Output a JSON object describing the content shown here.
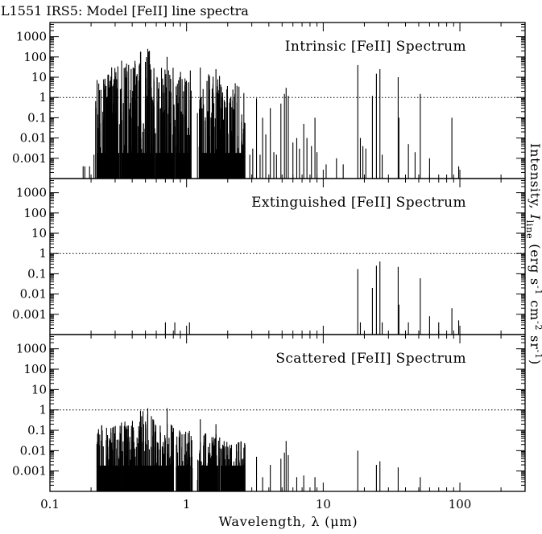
{
  "chart_data": {
    "type": "bar",
    "title": "L1551 IRS5: Model [FeII] line spectra",
    "xlabel": "Wavelength, λ (μm)",
    "ylabel": "Intensity, I_line (erg s⁻¹ cm⁻² sr⁻¹)",
    "ylabel_parts": {
      "prefix": "Intensity, ",
      "symbol": "I",
      "subscript": "line",
      "units_a": " (erg s",
      "exp1": "-1",
      "units_b": " cm",
      "exp2": "-2",
      "units_c": " sr",
      "exp3": "-1",
      "units_d": ")"
    },
    "x_scale": "log",
    "y_scale": "log",
    "xlim": [
      0.1,
      300
    ],
    "ylim": [
      0.0001,
      5000
    ],
    "x_tick_labels": [
      {
        "value": 0.1,
        "label": "0.1"
      },
      {
        "value": 1,
        "label": "1"
      },
      {
        "value": 10,
        "label": "10"
      },
      {
        "value": 100,
        "label": "100"
      }
    ],
    "y_tick_labels": [
      {
        "value": 1000,
        "label": "1000"
      },
      {
        "value": 100,
        "label": "100"
      },
      {
        "value": 10,
        "label": "10"
      },
      {
        "value": 1,
        "label": "1"
      },
      {
        "value": 0.1,
        "label": "0.1"
      },
      {
        "value": 0.01,
        "label": "0.01"
      },
      {
        "value": 0.001,
        "label": "0.001"
      }
    ],
    "reference_line": {
      "y": 1,
      "style": "dotted"
    },
    "grid": false,
    "legend": "none",
    "panels": [
      {
        "name": "Intrinsic [FeII] Spectrum",
        "label": "Intrinsic [FeII] Spectrum",
        "dense_clusters": [
          {
            "xmin": 0.215,
            "xmax": 0.3,
            "peak": 12
          },
          {
            "xmin": 0.26,
            "xmax": 0.33,
            "peak": 35
          },
          {
            "xmin": 0.33,
            "xmax": 0.46,
            "peak": 70
          },
          {
            "xmin": 0.45,
            "xmax": 0.58,
            "peak": 220
          },
          {
            "xmin": 0.58,
            "xmax": 0.82,
            "peak": 40
          },
          {
            "xmin": 0.82,
            "xmax": 1.1,
            "peak": 22
          },
          {
            "xmin": 1.2,
            "xmax": 1.75,
            "peak": 15
          },
          {
            "xmin": 1.75,
            "xmax": 2.7,
            "peak": 8
          }
        ],
        "lines": [
          {
            "x": 0.175,
            "y": 0.0004
          },
          {
            "x": 0.18,
            "y": 0.0004
          },
          {
            "x": 0.195,
            "y": 0.0004
          },
          {
            "x": 0.21,
            "y": 0.0015
          },
          {
            "x": 0.46,
            "y": 180
          },
          {
            "x": 0.52,
            "y": 250
          },
          {
            "x": 0.535,
            "y": 200
          },
          {
            "x": 0.72,
            "y": 100
          },
          {
            "x": 1.26,
            "y": 30
          },
          {
            "x": 1.64,
            "y": 25
          },
          {
            "x": 2.9,
            "y": 0.0015
          },
          {
            "x": 3.05,
            "y": 0.003
          },
          {
            "x": 3.25,
            "y": 0.9
          },
          {
            "x": 3.45,
            "y": 0.0015
          },
          {
            "x": 3.6,
            "y": 0.1
          },
          {
            "x": 3.8,
            "y": 0.015
          },
          {
            "x": 4.1,
            "y": 0.3
          },
          {
            "x": 4.35,
            "y": 0.002
          },
          {
            "x": 4.55,
            "y": 0.0015
          },
          {
            "x": 4.9,
            "y": 0.5
          },
          {
            "x": 5.2,
            "y": 1.5
          },
          {
            "x": 5.35,
            "y": 3.0
          },
          {
            "x": 5.55,
            "y": 1.2
          },
          {
            "x": 6.0,
            "y": 0.006
          },
          {
            "x": 6.4,
            "y": 0.01
          },
          {
            "x": 6.7,
            "y": 0.003
          },
          {
            "x": 7.2,
            "y": 0.05
          },
          {
            "x": 7.6,
            "y": 0.01
          },
          {
            "x": 8.2,
            "y": 0.004
          },
          {
            "x": 8.7,
            "y": 0.1
          },
          {
            "x": 9.0,
            "y": 0.002
          },
          {
            "x": 10.5,
            "y": 0.0005
          },
          {
            "x": 12.5,
            "y": 0.001
          },
          {
            "x": 14.0,
            "y": 0.0005
          },
          {
            "x": 17.9,
            "y": 40
          },
          {
            "x": 18.7,
            "y": 0.01
          },
          {
            "x": 19.5,
            "y": 0.004
          },
          {
            "x": 20.5,
            "y": 0.003
          },
          {
            "x": 22.9,
            "y": 1.2
          },
          {
            "x": 24.5,
            "y": 15
          },
          {
            "x": 25.99,
            "y": 25
          },
          {
            "x": 27.0,
            "y": 0.0015
          },
          {
            "x": 35.35,
            "y": 10
          },
          {
            "x": 35.8,
            "y": 0.1
          },
          {
            "x": 42.0,
            "y": 0.005
          },
          {
            "x": 47.0,
            "y": 0.002
          },
          {
            "x": 51.3,
            "y": 1.5
          },
          {
            "x": 60.0,
            "y": 0.001
          },
          {
            "x": 87.4,
            "y": 0.1
          },
          {
            "x": 98.0,
            "y": 0.0004
          }
        ]
      },
      {
        "name": "Extinguished [FeII] Spectrum",
        "label": "Extinguished [FeII] Spectrum",
        "dense_clusters": [],
        "lines": [
          {
            "x": 0.7,
            "y": 0.0004
          },
          {
            "x": 0.82,
            "y": 0.0004
          },
          {
            "x": 1.05,
            "y": 0.0004
          },
          {
            "x": 17.9,
            "y": 0.17
          },
          {
            "x": 18.7,
            "y": 0.0004
          },
          {
            "x": 22.9,
            "y": 0.02
          },
          {
            "x": 24.5,
            "y": 0.25
          },
          {
            "x": 25.99,
            "y": 0.4
          },
          {
            "x": 27.0,
            "y": 0.0004
          },
          {
            "x": 35.35,
            "y": 0.22
          },
          {
            "x": 35.8,
            "y": 0.003
          },
          {
            "x": 42.0,
            "y": 0.0004
          },
          {
            "x": 51.3,
            "y": 0.06
          },
          {
            "x": 60.0,
            "y": 0.0008
          },
          {
            "x": 70.0,
            "y": 0.0004
          },
          {
            "x": 87.4,
            "y": 0.002
          },
          {
            "x": 98.0,
            "y": 0.0005
          }
        ]
      },
      {
        "name": "Scattered [FeII] Spectrum",
        "label": "Scattered [FeII] Spectrum",
        "dense_clusters": [
          {
            "xmin": 0.22,
            "xmax": 0.33,
            "peak": 0.2
          },
          {
            "xmin": 0.33,
            "xmax": 0.46,
            "peak": 0.35
          },
          {
            "xmin": 0.45,
            "xmax": 0.58,
            "peak": 1.1
          },
          {
            "xmin": 0.58,
            "xmax": 0.82,
            "peak": 0.25
          },
          {
            "xmin": 0.82,
            "xmax": 1.1,
            "peak": 0.1
          },
          {
            "xmin": 1.2,
            "xmax": 1.75,
            "peak": 0.1
          },
          {
            "xmin": 1.75,
            "xmax": 2.7,
            "peak": 0.03
          }
        ],
        "lines": [
          {
            "x": 0.46,
            "y": 0.9
          },
          {
            "x": 0.52,
            "y": 1.2
          },
          {
            "x": 0.72,
            "y": 1.2
          },
          {
            "x": 1.26,
            "y": 0.35
          },
          {
            "x": 1.64,
            "y": 0.2
          },
          {
            "x": 3.25,
            "y": 0.005
          },
          {
            "x": 3.6,
            "y": 0.0005
          },
          {
            "x": 4.1,
            "y": 0.002
          },
          {
            "x": 4.9,
            "y": 0.004
          },
          {
            "x": 5.2,
            "y": 0.008
          },
          {
            "x": 5.35,
            "y": 0.03
          },
          {
            "x": 5.55,
            "y": 0.006
          },
          {
            "x": 6.4,
            "y": 0.0005
          },
          {
            "x": 7.2,
            "y": 0.0006
          },
          {
            "x": 8.7,
            "y": 0.0005
          },
          {
            "x": 17.9,
            "y": 0.01
          },
          {
            "x": 24.5,
            "y": 0.002
          },
          {
            "x": 25.99,
            "y": 0.003
          },
          {
            "x": 35.35,
            "y": 0.0015
          },
          {
            "x": 51.3,
            "y": 0.0005
          }
        ]
      }
    ]
  }
}
